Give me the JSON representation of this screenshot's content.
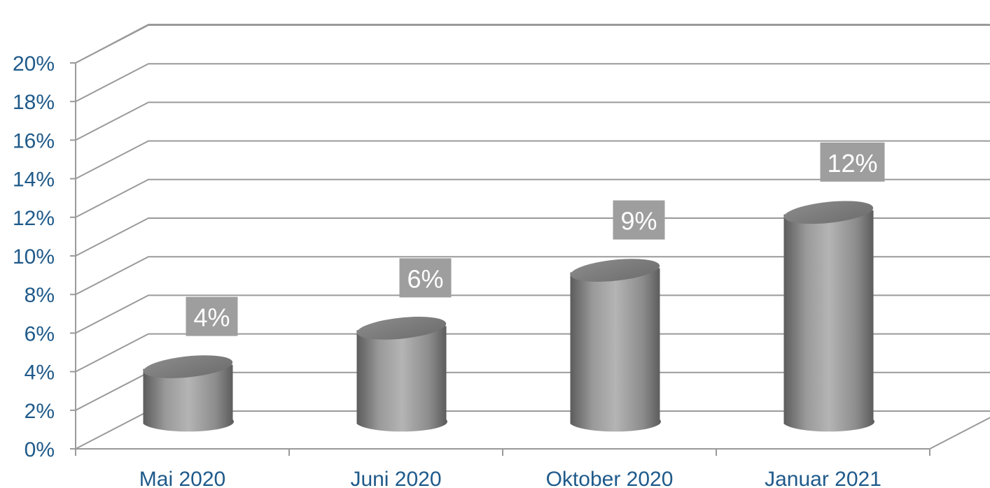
{
  "chart_data": {
    "type": "bar",
    "style": "3d-cylinder",
    "categories": [
      "Mai 2020",
      "Juni 2020",
      "Oktober 2020",
      "Januar 2021"
    ],
    "values": [
      4,
      6,
      9,
      12
    ],
    "data_labels": [
      "4%",
      "6%",
      "9%",
      "12%"
    ],
    "ylim": [
      0,
      20
    ],
    "yticks": [
      0,
      2,
      4,
      6,
      8,
      10,
      12,
      14,
      16,
      18,
      20
    ],
    "ytick_labels": [
      "0%",
      "2%",
      "4%",
      "6%",
      "8%",
      "10%",
      "12%",
      "14%",
      "16%",
      "18%",
      "20%"
    ],
    "title": "",
    "xlabel": "",
    "ylabel": "",
    "grid": true,
    "legend": "none"
  },
  "colors": {
    "axis_text": "#1f5a8a",
    "gridline": "#9a9a9a",
    "bar": "#9c9c9c",
    "label_box": "#9e9e9e",
    "label_text": "#ffffff"
  }
}
